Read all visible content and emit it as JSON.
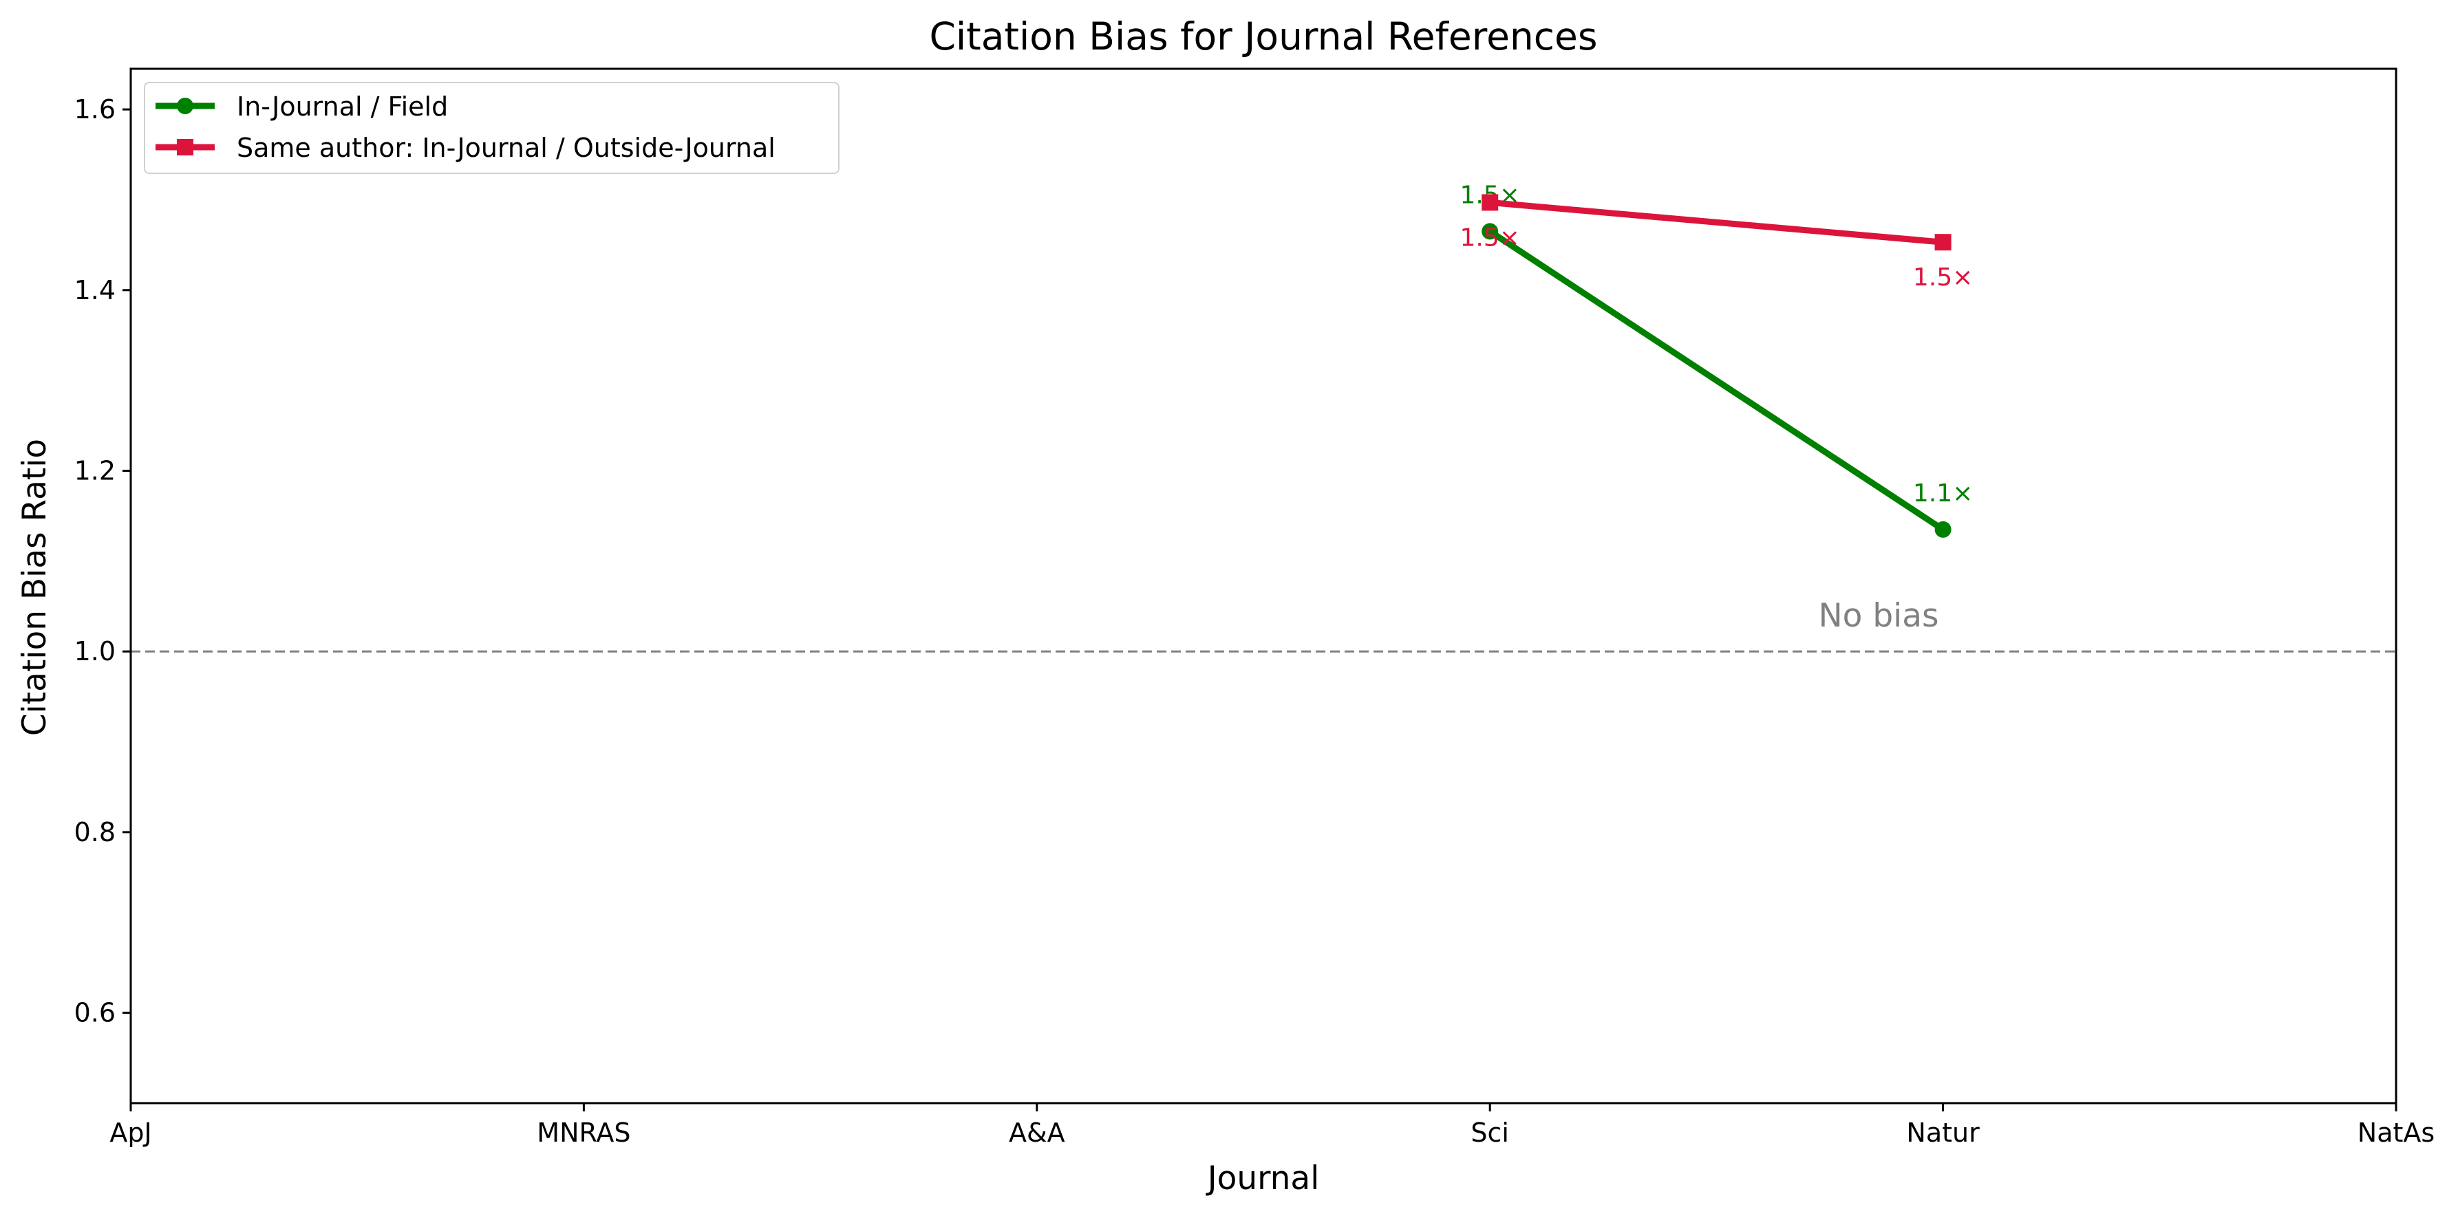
{
  "chart_data": {
    "type": "line",
    "title": "Citation Bias for Journal References",
    "xlabel": "Journal",
    "ylabel": "Citation Bias Ratio",
    "categories": [
      "ApJ",
      "MNRAS",
      "A&A",
      "Sci",
      "Natur",
      "NatAs"
    ],
    "ylim": [
      0.5,
      1.645
    ],
    "yticks": [
      0.6,
      0.8,
      1.0,
      1.2,
      1.4,
      1.6
    ],
    "ytick_labels": [
      "0.6",
      "0.8",
      "1.0",
      "1.2",
      "1.4",
      "1.6"
    ],
    "grid": false,
    "legend_position": "top-left",
    "series": [
      {
        "name": "In-Journal / Field",
        "color": "#008000",
        "marker": "circle",
        "values": [
          null,
          null,
          null,
          1.465,
          1.135,
          null
        ],
        "labels": [
          null,
          null,
          null,
          "1.5×",
          "1.1×",
          null
        ],
        "label_side": [
          "",
          "",
          "",
          "above",
          "above",
          ""
        ]
      },
      {
        "name": "Same author: In-Journal / Outside-Journal",
        "color": "#dc143c",
        "marker": "square",
        "values": [
          null,
          null,
          null,
          1.497,
          1.453,
          null
        ],
        "labels": [
          null,
          null,
          null,
          "1.5×",
          "1.5×",
          null
        ],
        "label_side": [
          "",
          "",
          "",
          "below",
          "below",
          ""
        ]
      }
    ],
    "reference_line": {
      "y": 1.0,
      "label": "No bias",
      "color": "#808080",
      "style": "dashed"
    }
  }
}
